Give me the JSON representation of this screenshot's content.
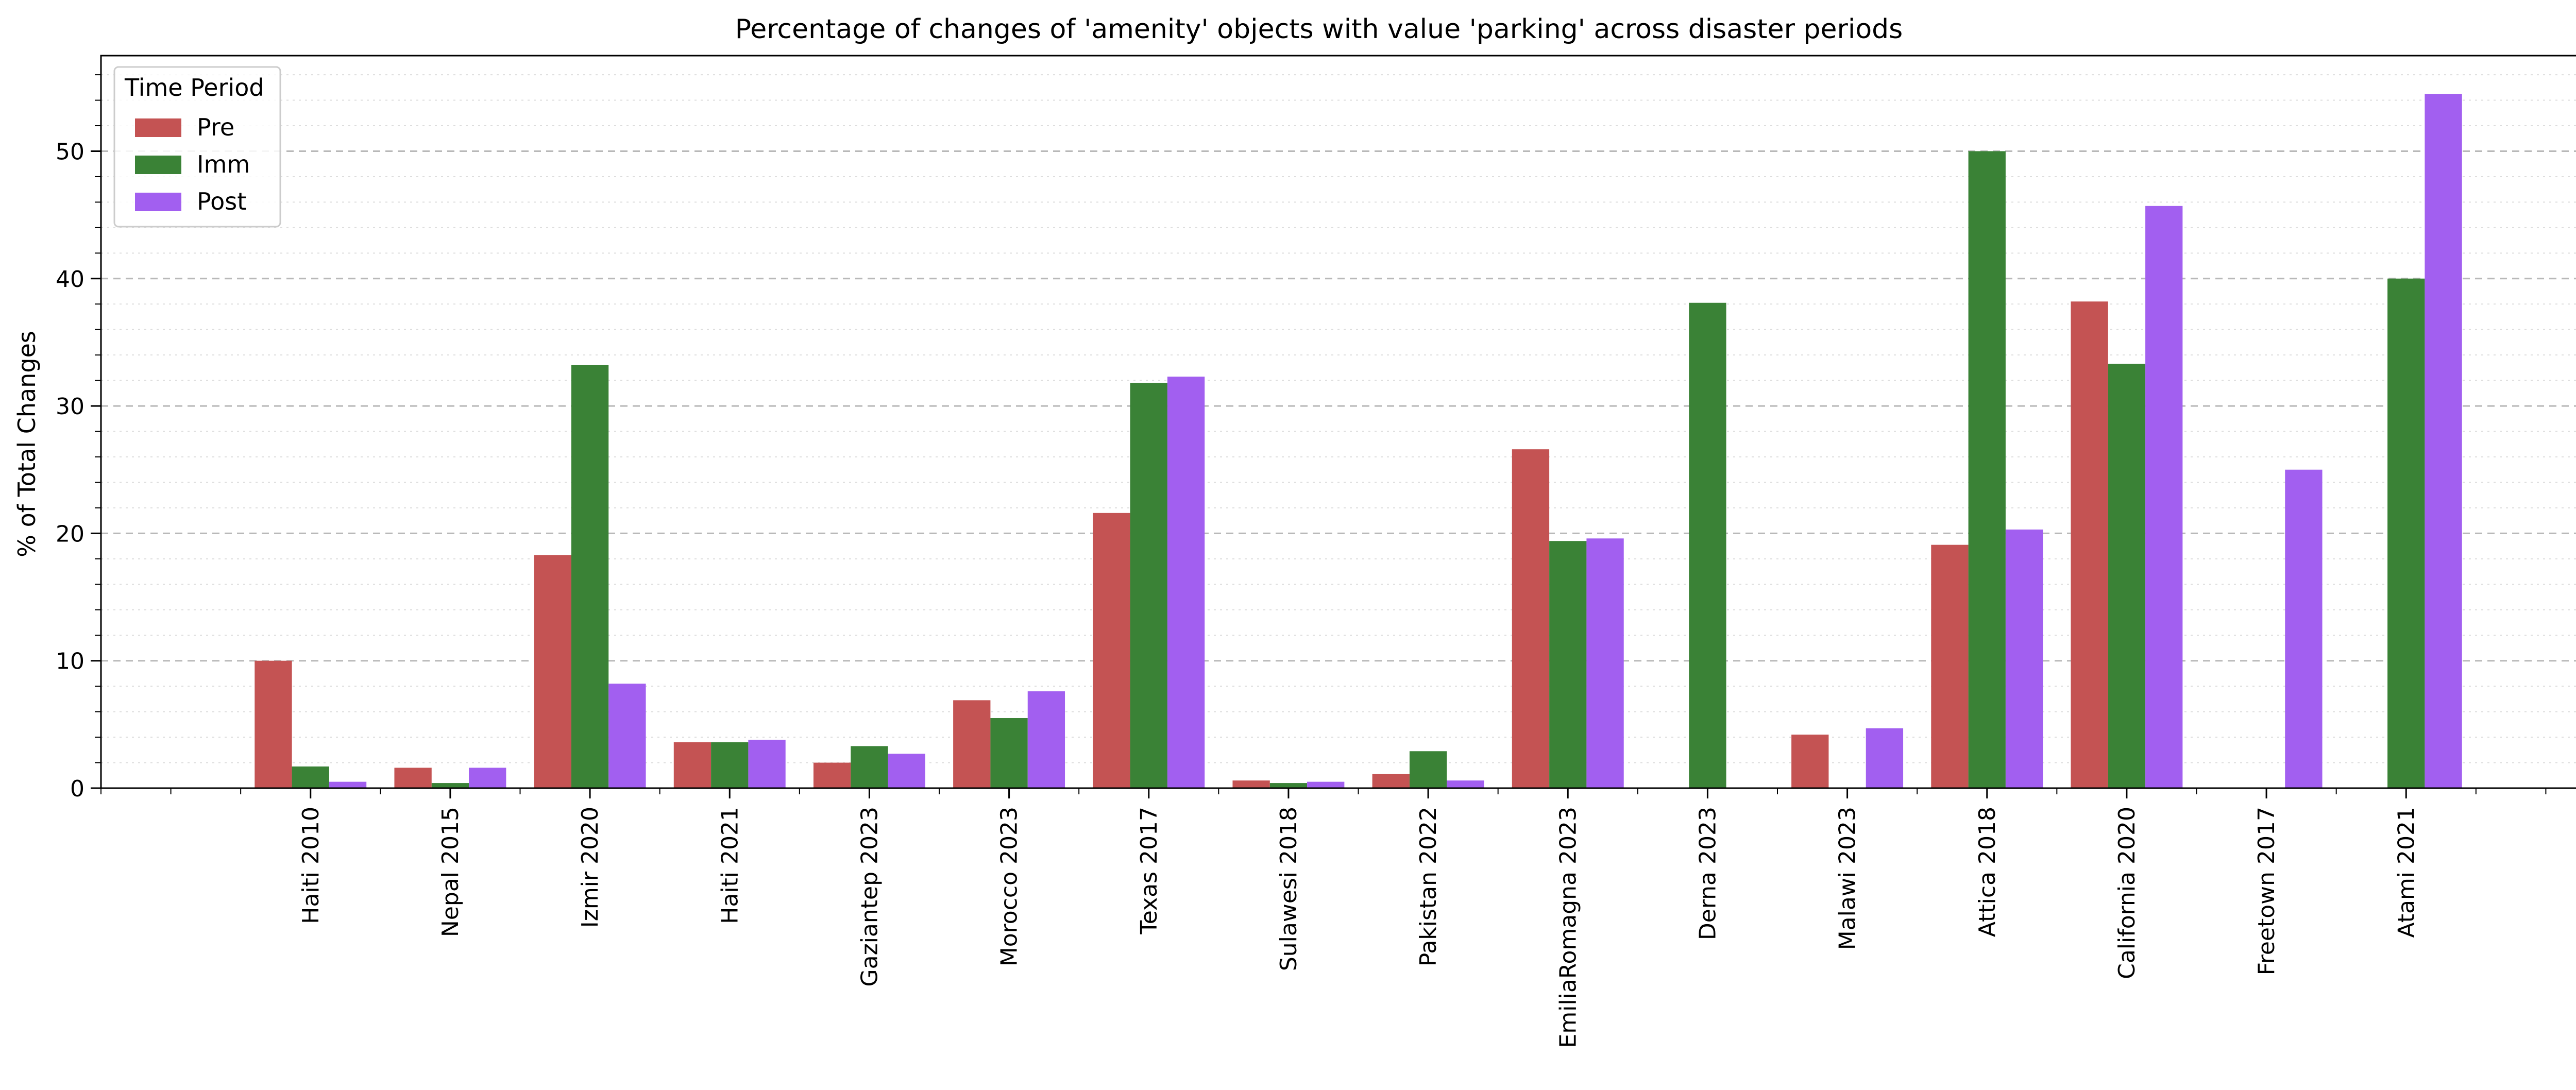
{
  "chart_data": {
    "type": "bar",
    "title": "Percentage of changes of 'amenity' objects with value 'parking' across disaster periods",
    "xlabel": "",
    "ylabel": "% of Total Changes",
    "ylim": [
      0,
      57.5
    ],
    "yticks": [
      0,
      10,
      20,
      30,
      40,
      50
    ],
    "grid": true,
    "legend": {
      "title": "Time Period",
      "placement": "top-left"
    },
    "categories": [
      "Haiti 2010",
      "Nepal 2015",
      "Izmir 2020",
      "Haiti 2021",
      "Gaziantep 2023",
      "Morocco 2023",
      "Texas 2017",
      "Sulawesi 2018",
      "Pakistan 2022",
      "EmiliaRomagna 2023",
      "Derna 2023",
      "Malawi 2023",
      "Attica 2018",
      "California 2020",
      "Freetown 2017",
      "Atami 2021"
    ],
    "series": [
      {
        "name": "Pre",
        "color": "#c45353",
        "values": [
          10.0,
          1.6,
          18.3,
          3.6,
          2.0,
          6.9,
          21.6,
          0.6,
          1.1,
          26.6,
          0,
          4.2,
          19.1,
          38.2,
          0,
          0
        ]
      },
      {
        "name": "Imm",
        "color": "#3a8236",
        "values": [
          1.7,
          0.4,
          33.2,
          3.6,
          3.3,
          5.5,
          31.8,
          0.4,
          2.9,
          19.4,
          38.1,
          0,
          50.0,
          33.3,
          0,
          40.0
        ]
      },
      {
        "name": "Post",
        "color": "#a25ff0",
        "values": [
          0.5,
          1.6,
          8.2,
          3.8,
          2.7,
          7.6,
          32.3,
          0.5,
          0.6,
          19.6,
          0,
          4.7,
          20.3,
          45.7,
          25.0,
          54.5
        ]
      }
    ]
  }
}
